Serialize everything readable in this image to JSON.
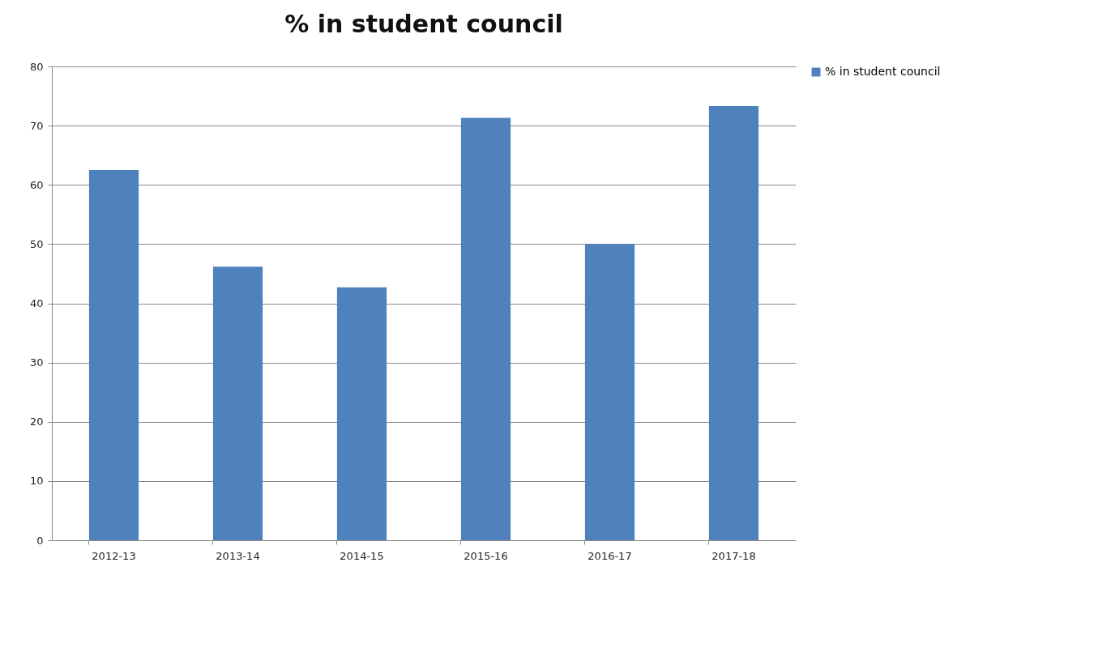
{
  "chart_data": {
    "type": "bar",
    "title": "% in student council",
    "categories": [
      "2012-13",
      "2013-14",
      "2014-15",
      "2015-16",
      "2016-17",
      "2017-18"
    ],
    "series": [
      {
        "name": "% in student council",
        "color": "#4f81bd",
        "values": [
          62.5,
          46.2,
          42.7,
          71.3,
          50,
          73.3
        ]
      }
    ],
    "ylim": [
      0,
      80
    ],
    "yticks": [
      0,
      10,
      20,
      30,
      40,
      50,
      60,
      70,
      80
    ],
    "grid": "y",
    "legend": "right"
  }
}
